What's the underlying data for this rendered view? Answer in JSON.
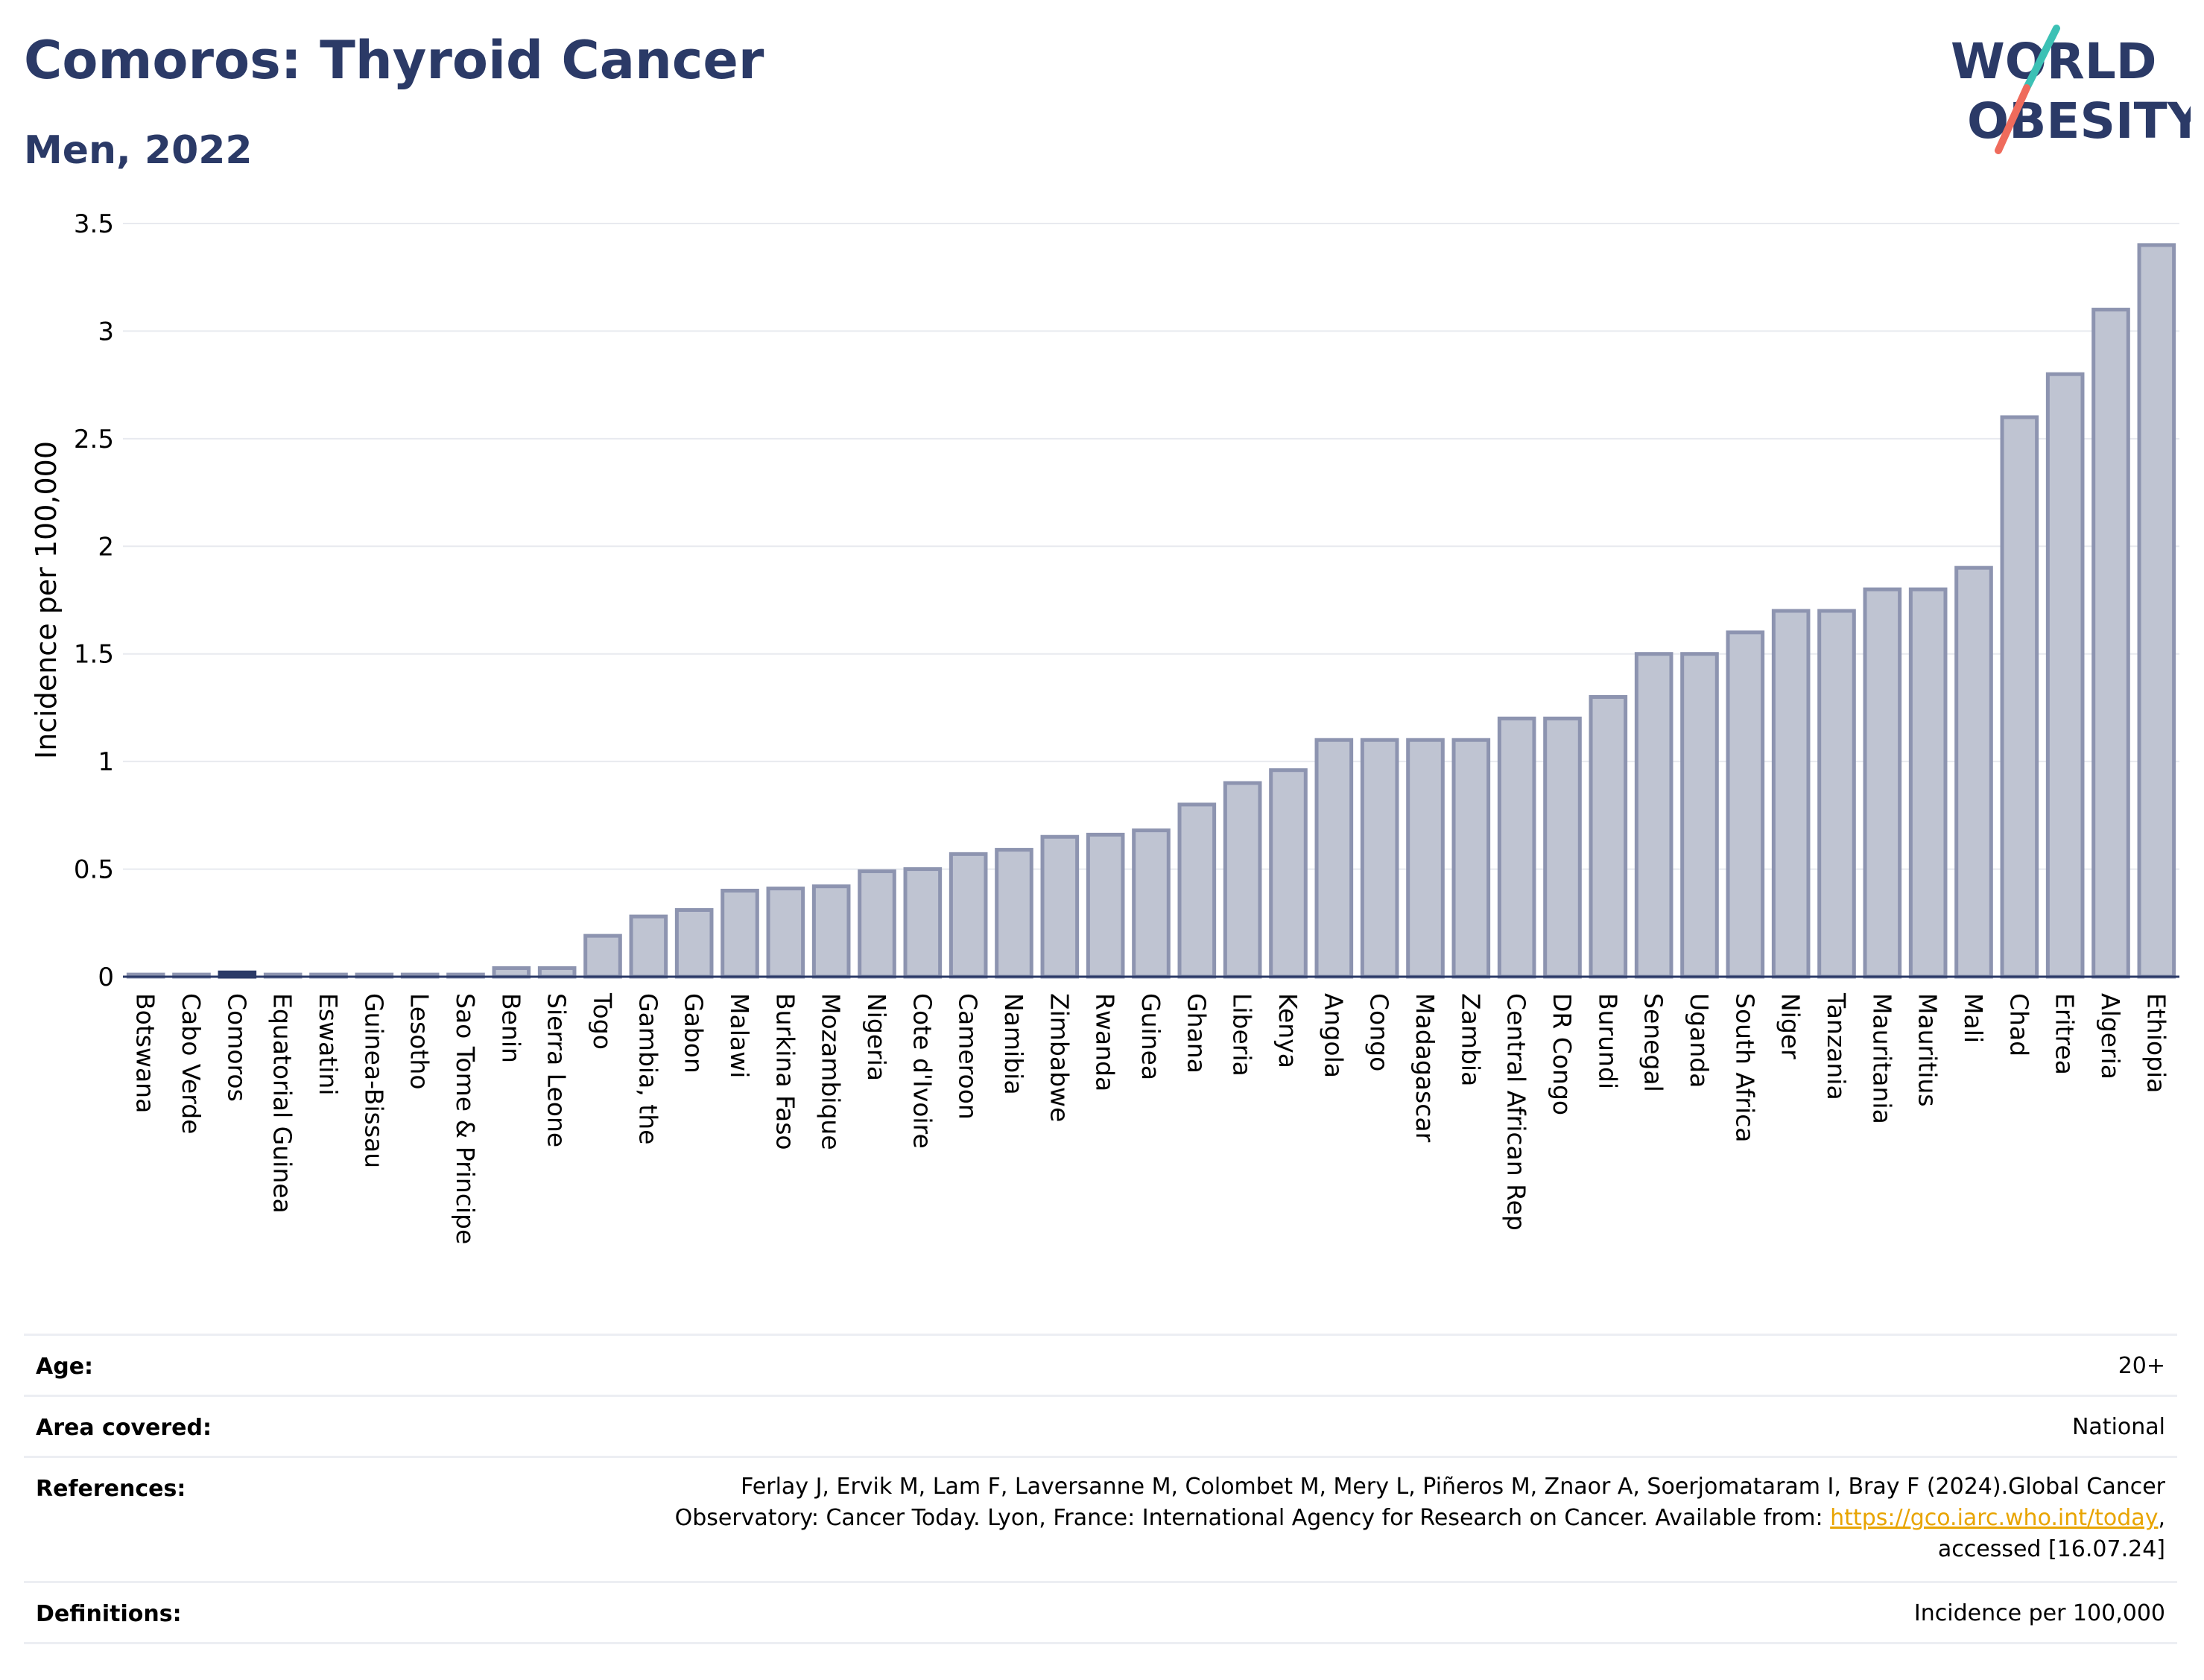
{
  "header": {
    "title": "Comoros: Thyroid Cancer",
    "subtitle": "Men, 2022",
    "logo_line1": "WORLD",
    "logo_line2": "OBESITY"
  },
  "colors": {
    "title": "#2b3a67",
    "bar_fill": "#bfc4d2",
    "bar_stroke": "#8d94b0",
    "highlight": "#2b3a67",
    "logo_teal": "#3cc1b5",
    "logo_coral": "#ef6b5c"
  },
  "chart_data": {
    "type": "bar",
    "title": "",
    "xlabel": "",
    "ylabel": "Incidence per 100,000",
    "ylim": [
      0,
      3.5
    ],
    "yticks": [
      "0",
      "0.5",
      "1",
      "1.5",
      "2",
      "2.5",
      "3",
      "3.5"
    ],
    "highlight_category": "Comoros",
    "grid": true,
    "categories": [
      "Botswana",
      "Cabo Verde",
      "Comoros",
      "Equatorial Guinea",
      "Eswatini",
      "Guinea-Bissau",
      "Lesotho",
      "Sao Tome & Principe",
      "Benin",
      "Sierra Leone",
      "Togo",
      "Gambia, the",
      "Gabon",
      "Malawi",
      "Burkina Faso",
      "Mozambique",
      "Nigeria",
      "Cote d'Ivoire",
      "Cameroon",
      "Namibia",
      "Zimbabwe",
      "Rwanda",
      "Guinea",
      "Ghana",
      "Liberia",
      "Kenya",
      "Angola",
      "Congo",
      "Madagascar",
      "Zambia",
      "Central African Rep",
      "DR Congo",
      "Burundi",
      "Senegal",
      "Uganda",
      "South Africa",
      "Niger",
      "Tanzania",
      "Mauritania",
      "Mauritius",
      "Mali",
      "Chad",
      "Eritrea",
      "Algeria",
      "Ethiopia"
    ],
    "values": [
      0.01,
      0.01,
      0.02,
      0.01,
      0.01,
      0.01,
      0.01,
      0.01,
      0.04,
      0.04,
      0.19,
      0.28,
      0.31,
      0.4,
      0.41,
      0.42,
      0.49,
      0.5,
      0.57,
      0.59,
      0.65,
      0.66,
      0.68,
      0.8,
      0.9,
      0.96,
      1.1,
      1.1,
      1.1,
      1.1,
      1.2,
      1.2,
      1.3,
      1.5,
      1.5,
      1.6,
      1.7,
      1.7,
      1.8,
      1.8,
      1.9,
      2.6,
      2.8,
      3.1,
      3.4
    ]
  },
  "meta": {
    "age_label": "Age:",
    "age_value": "20+",
    "area_label": "Area covered:",
    "area_value": "National",
    "references_label": "References:",
    "references_line1": "Ferlay J, Ervik M, Lam F, Laversanne M, Colombet M, Mery L, Piñeros M, Znaor A, Soerjomataram I, Bray F (2024).Global Cancer",
    "references_line2_prefix": "Observatory: Cancer Today. Lyon, France: International Agency for Research on Cancer. Available from: ",
    "references_link": "https://gco.iarc.who.int/today",
    "references_line2_suffix": ",",
    "references_line3": "accessed [16.07.24]",
    "definitions_label": "Definitions:",
    "definitions_value": "Incidence per 100,000"
  }
}
